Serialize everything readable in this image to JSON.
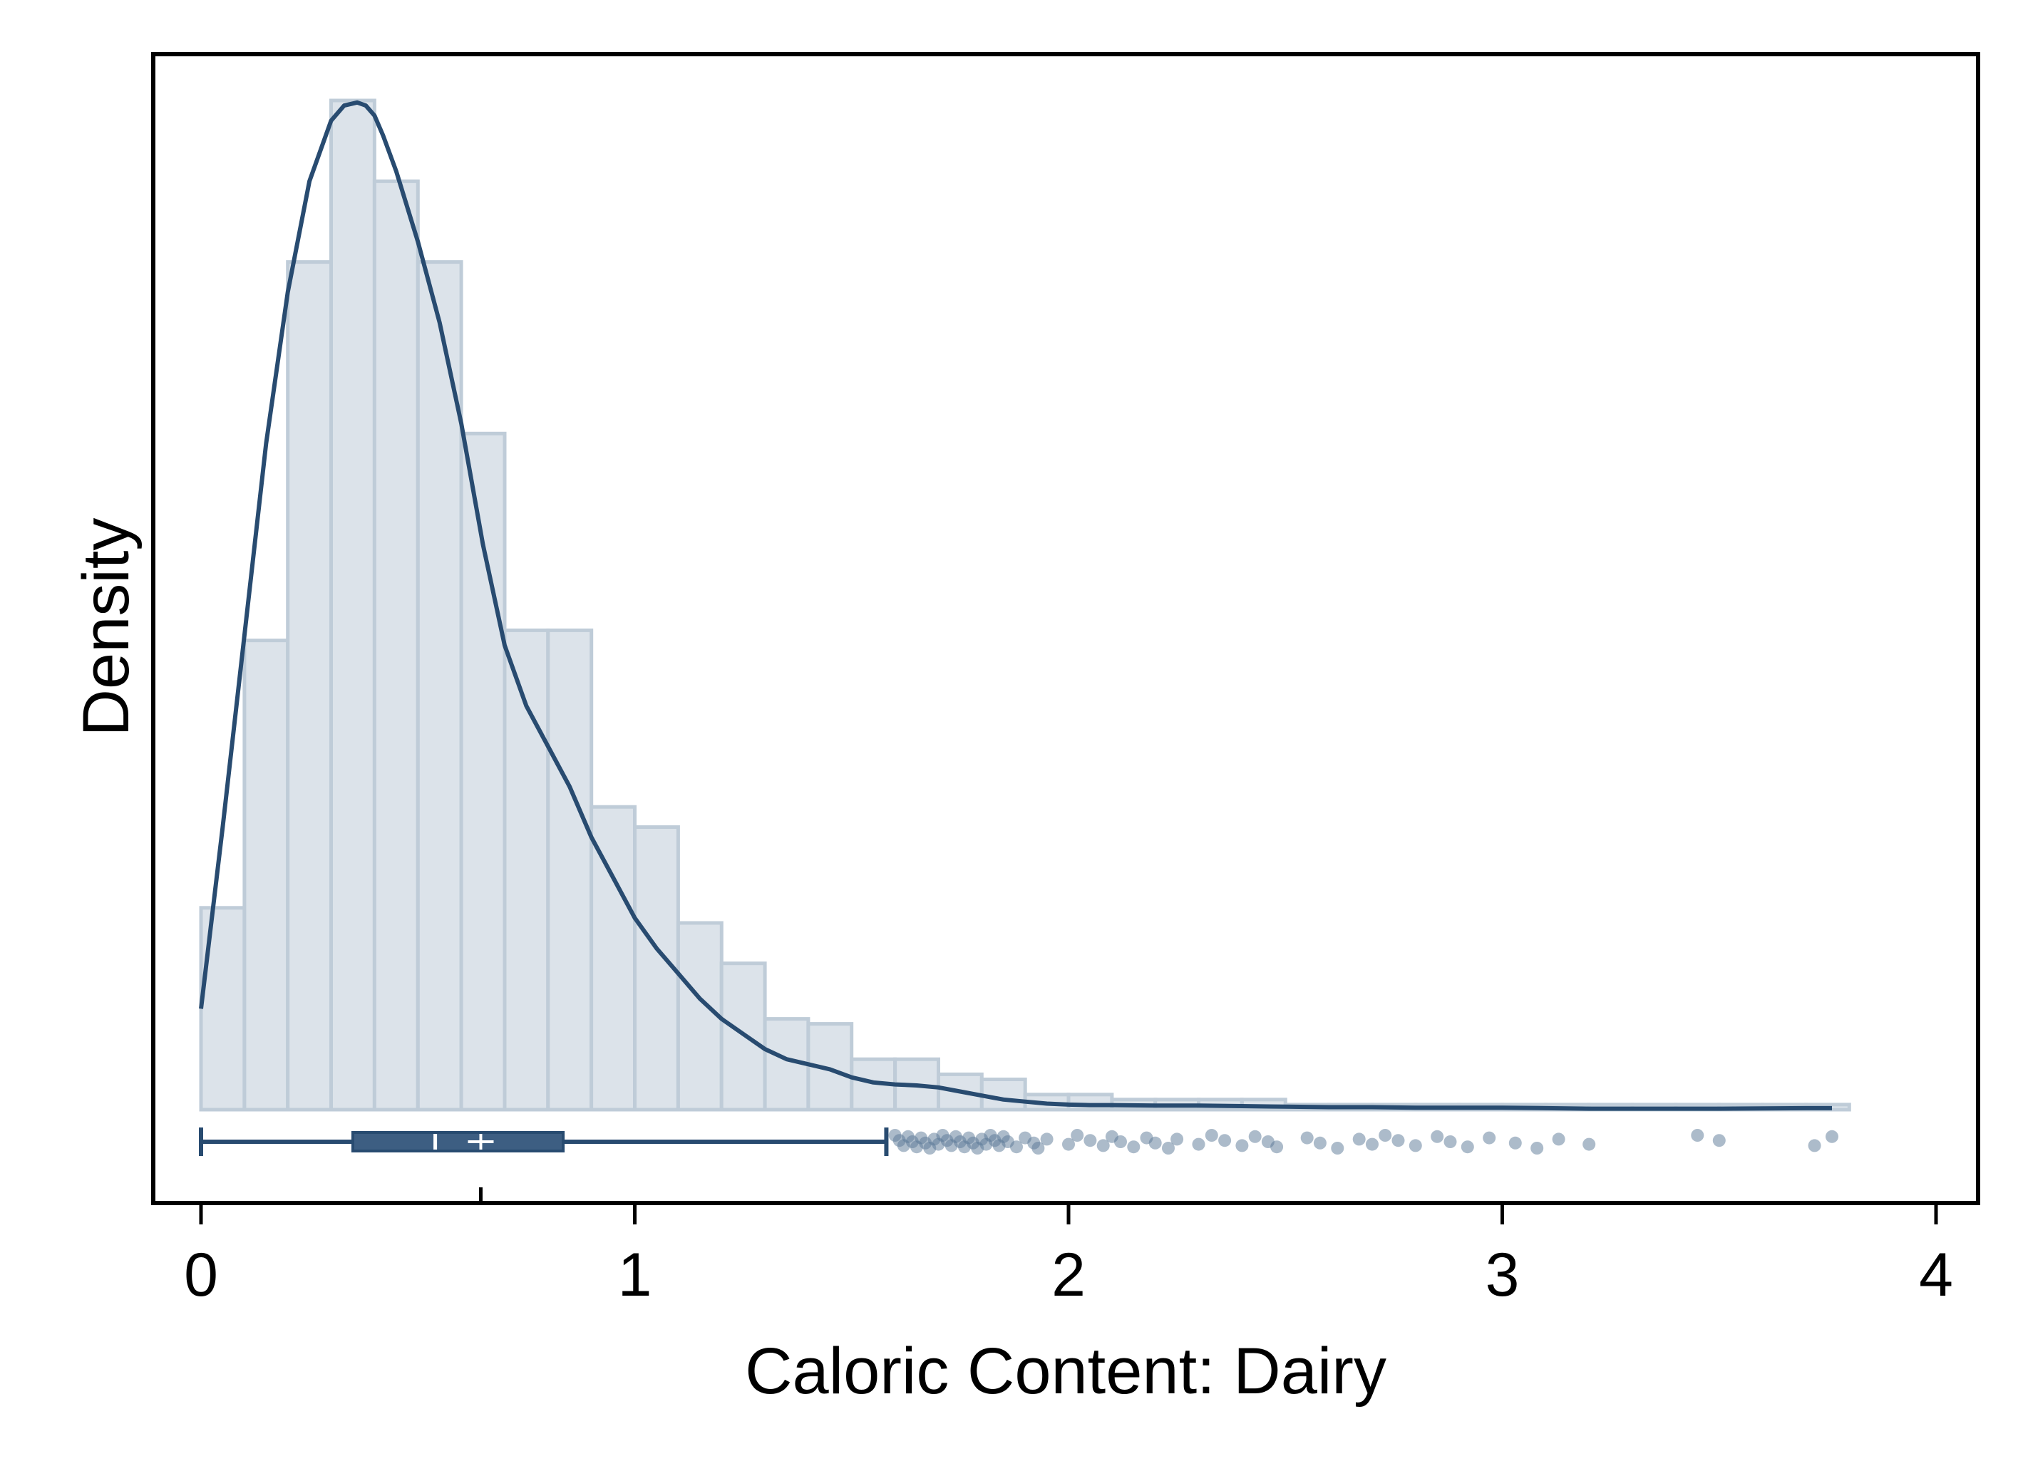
{
  "chart_data": {
    "type": "histogram",
    "xlabel": "Caloric Content: Dairy",
    "ylabel": "Density",
    "xlim": [
      -0.1,
      4.1
    ],
    "ylim": [
      -0.095,
      1.06
    ],
    "x_ticks": [
      0,
      1,
      2,
      3,
      4
    ],
    "x_tick_labels": [
      "0",
      "1",
      "2",
      "3",
      "4"
    ],
    "grid": false,
    "colors": {
      "bar_fill": "#dce3ea",
      "bar_stroke": "#bfccd8",
      "line": "#284b70",
      "box": "#3d5e82",
      "points": "#5a7796",
      "frame": "#000000"
    },
    "histogram": {
      "bin_width": 0.1,
      "bin_starts": [
        0.0,
        0.1,
        0.2,
        0.3,
        0.4,
        0.5,
        0.6,
        0.7,
        0.8,
        0.9,
        1.0,
        1.1,
        1.2,
        1.3,
        1.4,
        1.5,
        1.6,
        1.7,
        1.8,
        1.9,
        2.0,
        2.1,
        2.2,
        2.3,
        2.4,
        2.5,
        2.6,
        2.7,
        2.8,
        2.9,
        3.0,
        3.1,
        3.2,
        3.3,
        3.4,
        3.5,
        3.6,
        3.7
      ],
      "densities": [
        0.2,
        0.465,
        0.84,
        1.0,
        0.92,
        0.84,
        0.67,
        0.475,
        0.475,
        0.3,
        0.28,
        0.185,
        0.145,
        0.09,
        0.085,
        0.05,
        0.05,
        0.035,
        0.03,
        0.015,
        0.015,
        0.01,
        0.01,
        0.01,
        0.01,
        0.005,
        0.005,
        0.005,
        0.005,
        0.005,
        0.005,
        0.005,
        0.005,
        0.005,
        0.005,
        0.005,
        0.005,
        0.005
      ]
    },
    "kde": {
      "x": [
        0.0,
        0.05,
        0.1,
        0.15,
        0.2,
        0.25,
        0.3,
        0.33,
        0.36,
        0.38,
        0.4,
        0.42,
        0.45,
        0.5,
        0.55,
        0.6,
        0.65,
        0.7,
        0.75,
        0.8,
        0.85,
        0.9,
        0.95,
        1.0,
        1.05,
        1.1,
        1.15,
        1.2,
        1.25,
        1.3,
        1.35,
        1.4,
        1.45,
        1.5,
        1.55,
        1.6,
        1.65,
        1.7,
        1.75,
        1.8,
        1.85,
        1.9,
        1.95,
        2.0,
        2.05,
        2.1,
        2.2,
        2.3,
        2.4,
        2.5,
        2.6,
        2.7,
        2.8,
        2.9,
        3.0,
        3.1,
        3.2,
        3.3,
        3.4,
        3.5,
        3.6,
        3.7,
        3.76
      ],
      "y": [
        0.1,
        0.28,
        0.47,
        0.66,
        0.81,
        0.92,
        0.98,
        0.995,
        0.998,
        0.995,
        0.985,
        0.965,
        0.93,
        0.86,
        0.78,
        0.68,
        0.56,
        0.46,
        0.4,
        0.36,
        0.32,
        0.27,
        0.23,
        0.19,
        0.16,
        0.135,
        0.11,
        0.09,
        0.075,
        0.06,
        0.05,
        0.045,
        0.04,
        0.032,
        0.027,
        0.025,
        0.024,
        0.022,
        0.018,
        0.014,
        0.01,
        0.008,
        0.006,
        0.005,
        0.0045,
        0.0045,
        0.004,
        0.004,
        0.0035,
        0.003,
        0.0025,
        0.0025,
        0.002,
        0.002,
        0.002,
        0.0015,
        0.001,
        0.001,
        0.001,
        0.001,
        0.0012,
        0.0015,
        0.0015
      ]
    },
    "boxplot": {
      "whisker_low": 0.0,
      "q1": 0.35,
      "median": 0.54,
      "mean": 0.645,
      "q3": 0.835,
      "whisker_high": 1.58,
      "outliers": [
        1.6,
        1.61,
        1.62,
        1.63,
        1.64,
        1.65,
        1.66,
        1.67,
        1.68,
        1.69,
        1.7,
        1.71,
        1.72,
        1.73,
        1.74,
        1.75,
        1.76,
        1.77,
        1.78,
        1.79,
        1.8,
        1.81,
        1.82,
        1.83,
        1.84,
        1.85,
        1.86,
        1.88,
        1.9,
        1.92,
        1.93,
        1.95,
        2.0,
        2.02,
        2.05,
        2.08,
        2.1,
        2.12,
        2.15,
        2.18,
        2.2,
        2.23,
        2.25,
        2.3,
        2.33,
        2.36,
        2.4,
        2.43,
        2.46,
        2.48,
        2.55,
        2.58,
        2.62,
        2.67,
        2.7,
        2.73,
        2.76,
        2.8,
        2.85,
        2.88,
        2.92,
        2.97,
        3.03,
        3.08,
        3.13,
        3.2,
        3.45,
        3.5,
        3.72,
        3.76
      ]
    }
  }
}
